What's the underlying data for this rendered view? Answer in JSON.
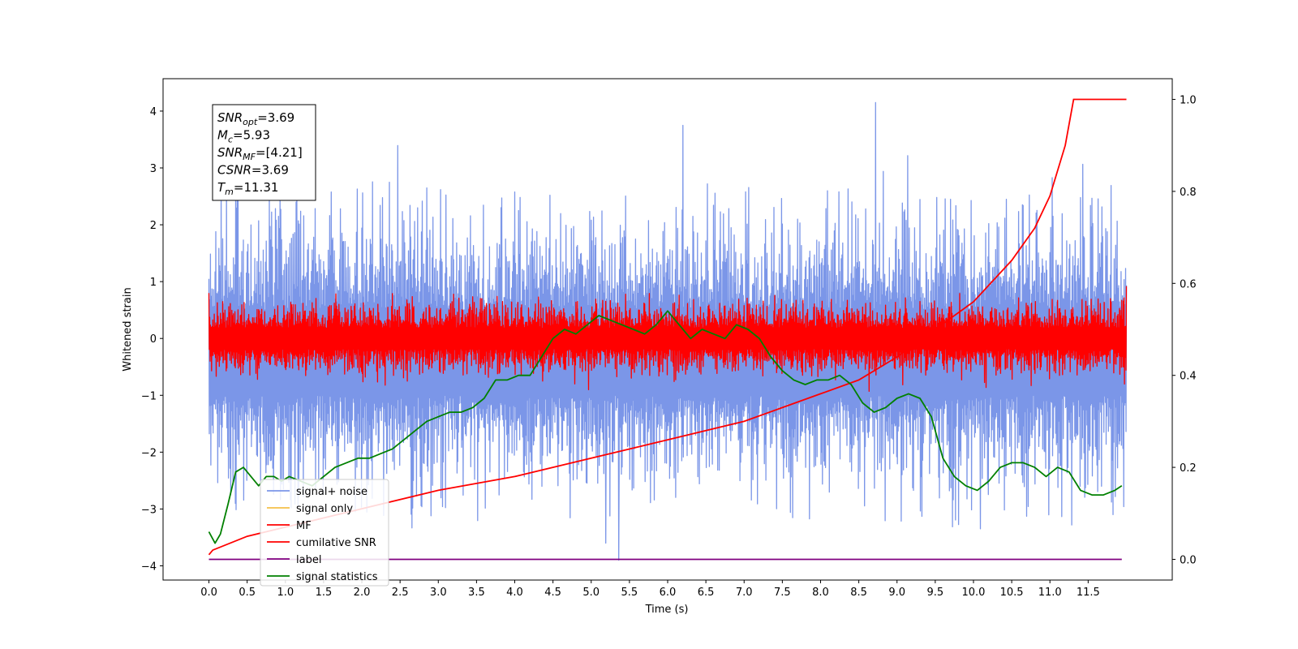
{
  "chart_data": {
    "type": "line",
    "xlabel": "Time (s)",
    "ylabel": "Whitened strain",
    "xlim": [
      -0.6,
      12.6
    ],
    "ylim": [
      -4.25,
      4.57
    ],
    "y2lim": [
      -0.045,
      1.045
    ],
    "x_ticks": [
      "0.0",
      "0.5",
      "1.0",
      "1.5",
      "2.0",
      "2.5",
      "3.0",
      "3.5",
      "4.0",
      "4.5",
      "5.0",
      "5.5",
      "6.0",
      "6.5",
      "7.0",
      "7.5",
      "8.0",
      "8.5",
      "9.0",
      "9.5",
      "10.0",
      "10.5",
      "11.0",
      "11.5"
    ],
    "y_ticks": [
      "4",
      "3",
      "2",
      "1",
      "0",
      "−1",
      "−2",
      "−3",
      "−4"
    ],
    "y2_ticks": [
      "1.0",
      "0.8",
      "0.6",
      "0.4",
      "0.2",
      "0.0"
    ],
    "info_box": [
      {
        "sym": "SNR",
        "sub": "opt",
        "val": "=3.69"
      },
      {
        "sym": "M",
        "sub": "c",
        "val": "=5.93"
      },
      {
        "sym": "SNR",
        "sub": "MF",
        "val": "=[4.21]"
      },
      {
        "sym": "CSNR",
        "sub": "",
        "val": "=3.69"
      },
      {
        "sym": "T",
        "sub": "m",
        "val": "=11.31"
      }
    ],
    "legend_position": "lower-left",
    "series": [
      {
        "name": "signal+ noise",
        "color": "#7b96e8",
        "axis": "left",
        "kind": "noise",
        "center": -0.25,
        "spread": 1.0,
        "extremes": [
          [
            5.36,
            -3.9
          ],
          [
            8.72,
            4.15
          ],
          [
            5.19,
            -3.6
          ],
          [
            10.09,
            -3.35
          ],
          [
            6.2,
            3.75
          ]
        ]
      },
      {
        "name": "signal only",
        "color": "#f5c04a",
        "axis": "left",
        "kind": "flat",
        "values": [
          0,
          0
        ]
      },
      {
        "name": "MF",
        "color": "#ff0000",
        "axis": "left",
        "kind": "mf",
        "center": 0.0,
        "spread": 0.22,
        "extremes": [
          [
            0.0,
            0.8
          ],
          [
            12.0,
            0.92
          ],
          [
            3.2,
            0.78
          ],
          [
            5.45,
            0.78
          ],
          [
            9.3,
            0.65
          ]
        ]
      },
      {
        "name": "cumilative SNR",
        "color": "#ff0000",
        "axis": "right",
        "x": [
          0.0,
          0.05,
          0.5,
          1.0,
          2.0,
          3.0,
          4.0,
          5.0,
          6.0,
          7.0,
          7.5,
          8.0,
          8.5,
          9.0,
          9.5,
          10.0,
          10.5,
          10.8,
          11.0,
          11.2,
          11.31,
          12.0
        ],
        "y": [
          0.01,
          0.02,
          0.05,
          0.07,
          0.11,
          0.15,
          0.18,
          0.22,
          0.26,
          0.3,
          0.33,
          0.36,
          0.39,
          0.44,
          0.5,
          0.56,
          0.65,
          0.72,
          0.79,
          0.9,
          1.0,
          1.0
        ]
      },
      {
        "name": "label",
        "color": "#800080",
        "axis": "right",
        "x": [
          0.0,
          11.94
        ],
        "y": [
          0.0,
          0.0
        ]
      },
      {
        "name": "signal statistics",
        "color": "#008000",
        "axis": "right",
        "x": [
          0.0,
          0.08,
          0.15,
          0.25,
          0.35,
          0.45,
          0.55,
          0.65,
          0.75,
          0.85,
          0.95,
          1.05,
          1.2,
          1.35,
          1.5,
          1.65,
          1.8,
          1.95,
          2.1,
          2.25,
          2.4,
          2.55,
          2.7,
          2.85,
          3.0,
          3.15,
          3.3,
          3.45,
          3.6,
          3.75,
          3.9,
          4.05,
          4.2,
          4.35,
          4.5,
          4.65,
          4.8,
          4.95,
          5.1,
          5.25,
          5.4,
          5.55,
          5.7,
          5.85,
          6.0,
          6.15,
          6.3,
          6.45,
          6.6,
          6.75,
          6.9,
          7.05,
          7.2,
          7.35,
          7.5,
          7.65,
          7.8,
          7.95,
          8.1,
          8.25,
          8.4,
          8.55,
          8.7,
          8.85,
          9.0,
          9.15,
          9.3,
          9.45,
          9.6,
          9.75,
          9.9,
          10.05,
          10.2,
          10.35,
          10.5,
          10.65,
          10.8,
          10.95,
          11.1,
          11.25,
          11.4,
          11.55,
          11.7,
          11.85,
          11.94
        ],
        "y": [
          0.06,
          0.035,
          0.055,
          0.12,
          0.19,
          0.2,
          0.18,
          0.16,
          0.18,
          0.18,
          0.17,
          0.18,
          0.17,
          0.16,
          0.18,
          0.2,
          0.21,
          0.22,
          0.22,
          0.23,
          0.24,
          0.26,
          0.28,
          0.3,
          0.31,
          0.32,
          0.32,
          0.33,
          0.35,
          0.39,
          0.39,
          0.4,
          0.4,
          0.44,
          0.48,
          0.5,
          0.49,
          0.51,
          0.53,
          0.52,
          0.51,
          0.5,
          0.49,
          0.51,
          0.54,
          0.51,
          0.48,
          0.5,
          0.49,
          0.48,
          0.51,
          0.5,
          0.48,
          0.44,
          0.41,
          0.39,
          0.38,
          0.39,
          0.39,
          0.4,
          0.38,
          0.34,
          0.32,
          0.33,
          0.35,
          0.36,
          0.35,
          0.31,
          0.22,
          0.18,
          0.16,
          0.15,
          0.17,
          0.2,
          0.21,
          0.21,
          0.2,
          0.18,
          0.2,
          0.19,
          0.15,
          0.14,
          0.14,
          0.15,
          0.16
        ]
      }
    ]
  }
}
